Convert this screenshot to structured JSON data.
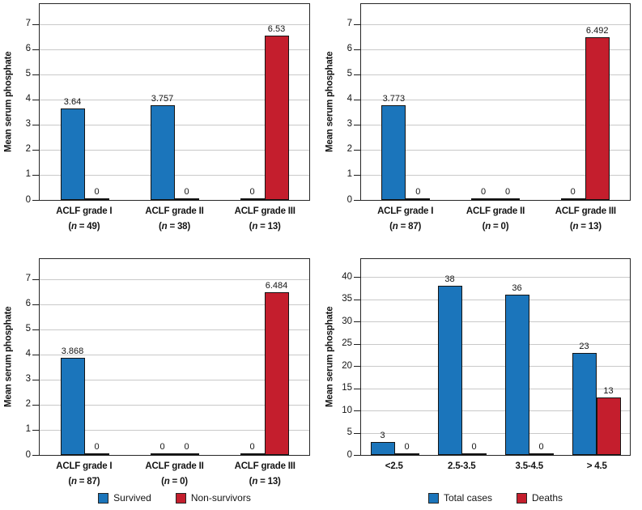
{
  "colors": {
    "series_blue": "#1b75bb",
    "series_red": "#c41e2d"
  },
  "chart_data": [
    {
      "type": "bar",
      "position": "top-left",
      "ylabel": "Mean serum phosphate",
      "yticks": [
        0,
        1,
        2,
        3,
        4,
        5,
        6,
        7
      ],
      "ylim": [
        0,
        7.8
      ],
      "grid": "horizontal",
      "categories": [
        {
          "label": "ACLF grade I",
          "sub": "(n = 49)"
        },
        {
          "label": "ACLF grade II",
          "sub": "(n = 38)"
        },
        {
          "label": "ACLF grade III",
          "sub": "(n = 13)"
        }
      ],
      "series": [
        {
          "color": "#1b75bb",
          "values": [
            3.64,
            3.757,
            0
          ],
          "labels": [
            "3.64",
            "3.757",
            "0"
          ]
        },
        {
          "color": "#c41e2d",
          "values": [
            0,
            0,
            6.53
          ],
          "labels": [
            "0",
            "0",
            "6.53"
          ]
        }
      ],
      "legend": null
    },
    {
      "type": "bar",
      "position": "top-right",
      "ylabel": "Mean serum phosphate",
      "yticks": [
        0,
        1,
        2,
        3,
        4,
        5,
        6,
        7
      ],
      "ylim": [
        0,
        7.8
      ],
      "grid": "horizontal",
      "categories": [
        {
          "label": "ACLF grade I",
          "sub": "(n = 87)"
        },
        {
          "label": "ACLF grade II",
          "sub": "(n = 0)"
        },
        {
          "label": "ACLF grade III",
          "sub": "(n = 13)"
        }
      ],
      "series": [
        {
          "color": "#1b75bb",
          "values": [
            3.773,
            0,
            0
          ],
          "labels": [
            "3.773",
            "0",
            "0"
          ]
        },
        {
          "color": "#c41e2d",
          "values": [
            0,
            0,
            6.492
          ],
          "labels": [
            "0",
            "0",
            "6.492"
          ]
        }
      ],
      "legend": null
    },
    {
      "type": "bar",
      "position": "bottom-left",
      "ylabel": "Mean serum phosphate",
      "yticks": [
        0,
        1,
        2,
        3,
        4,
        5,
        6,
        7
      ],
      "ylim": [
        0,
        7.8
      ],
      "grid": "horizontal",
      "categories": [
        {
          "label": "ACLF grade I",
          "sub": "(n = 87)"
        },
        {
          "label": "ACLF grade II",
          "sub": "(n = 0)"
        },
        {
          "label": "ACLF grade III",
          "sub": "(n = 13)"
        }
      ],
      "series": [
        {
          "name": "Survived",
          "color": "#1b75bb",
          "values": [
            3.868,
            0,
            0
          ],
          "labels": [
            "3.868",
            "0",
            "0"
          ]
        },
        {
          "name": "Non-survivors",
          "color": "#c41e2d",
          "values": [
            0,
            0,
            6.484
          ],
          "labels": [
            "0",
            "0",
            "6.484"
          ]
        }
      ],
      "legend": [
        {
          "label": "Survived",
          "color": "#1b75bb"
        },
        {
          "label": "Non-survivors",
          "color": "#c41e2d"
        }
      ]
    },
    {
      "type": "bar",
      "position": "bottom-right",
      "ylabel": "Mean serum phosphate",
      "yticks": [
        0,
        5,
        10,
        15,
        20,
        25,
        30,
        35,
        40
      ],
      "ylim": [
        0,
        44
      ],
      "grid": "horizontal",
      "categories": [
        {
          "label": "<2.5"
        },
        {
          "label": "2.5-3.5"
        },
        {
          "label": "3.5-4.5"
        },
        {
          "label": "> 4.5"
        }
      ],
      "series": [
        {
          "name": "Total cases",
          "color": "#1b75bb",
          "values": [
            3,
            38,
            36,
            23
          ],
          "labels": [
            "3",
            "38",
            "36",
            "23"
          ]
        },
        {
          "name": "Deaths",
          "color": "#c41e2d",
          "values": [
            0,
            0,
            0,
            13
          ],
          "labels": [
            "0",
            "0",
            "0",
            "13"
          ]
        }
      ],
      "legend": [
        {
          "label": "Total cases",
          "color": "#1b75bb"
        },
        {
          "label": "Deaths",
          "color": "#c41e2d"
        }
      ]
    }
  ]
}
